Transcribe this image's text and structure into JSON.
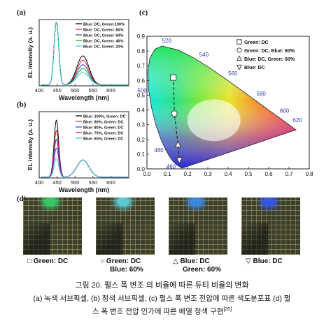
{
  "panel_labels": {
    "a": "(a)",
    "b": "(b)",
    "c": "(c)",
    "d": "(d)"
  },
  "chart_data": [
    {
      "id": "a",
      "type": "line",
      "xlabel": "Wavelength (nm)",
      "ylabel": "EL intensity (a. u.)",
      "xlim": [
        400,
        650
      ],
      "xticks": [
        400,
        450,
        500,
        550,
        600
      ],
      "legend_position": "top-right",
      "series": [
        {
          "name": "Blue: DC, Green:100%",
          "color": "#000000",
          "blue_peak": 1.0,
          "green_peak": 0.46
        },
        {
          "name": "Blue: DC, Green: 80%",
          "color": "#e0222a",
          "blue_peak": 1.0,
          "green_peak": 0.39
        },
        {
          "name": "Blue: DC, Green: 60%",
          "color": "#2a3fcf",
          "blue_peak": 1.0,
          "green_peak": 0.32
        },
        {
          "name": "Blue: DC, Green: 40%",
          "color": "#17a832",
          "blue_peak": 1.0,
          "green_peak": 0.26
        },
        {
          "name": "Blue: DC, Green: 20%",
          "color": "#35c7c7",
          "blue_peak": 1.0,
          "green_peak": 0.2
        }
      ]
    },
    {
      "id": "b",
      "type": "line",
      "xlabel": "Wavelength (nm)",
      "ylabel": "EL intensity (a. u.)",
      "xlim": [
        400,
        650
      ],
      "xticks": [
        400,
        450,
        500,
        550,
        600
      ],
      "legend_position": "top-right",
      "series": [
        {
          "name": "Blue: 100%, Green: DC",
          "color": "#000000",
          "blue_peak": 0.9,
          "green_peak": 0.27
        },
        {
          "name": "Blue: 90%, Green: DC",
          "color": "#e0222a",
          "blue_peak": 0.74,
          "green_peak": 0.27
        },
        {
          "name": "Blue: 80%, Green: DC",
          "color": "#2a3fcf",
          "blue_peak": 0.6,
          "green_peak": 0.27
        },
        {
          "name": "Blue: 70%, Green: DC",
          "color": "#a020a8",
          "blue_peak": 0.46,
          "green_peak": 0.27
        },
        {
          "name": "Blue: 60%, Green: DC",
          "color": "#35c7c7",
          "blue_peak": 0.3,
          "green_peak": 0.27
        }
      ]
    },
    {
      "id": "c",
      "type": "scatter",
      "xlim": [
        0.0,
        0.8
      ],
      "ylim": [
        0.0,
        0.9
      ],
      "xticks": [
        0.0,
        0.1,
        0.2,
        0.3,
        0.4,
        0.5,
        0.6,
        0.7,
        0.8
      ],
      "yticks": [
        0.0,
        0.1,
        0.2,
        0.3,
        0.4,
        0.5,
        0.6,
        0.7,
        0.8,
        0.9
      ],
      "legend_position": "top-right",
      "wavelength_labels": [
        "520",
        "540",
        "560",
        "580",
        "600",
        "620",
        "500",
        "480",
        "460"
      ],
      "locus": [
        {
          "nm": 460,
          "x": 0.144,
          "y": 0.03
        },
        {
          "nm": 470,
          "x": 0.124,
          "y": 0.058
        },
        {
          "nm": 475,
          "x": 0.11,
          "y": 0.087
        },
        {
          "nm": 480,
          "x": 0.091,
          "y": 0.133
        },
        {
          "nm": 485,
          "x": 0.069,
          "y": 0.201
        },
        {
          "nm": 490,
          "x": 0.045,
          "y": 0.295
        },
        {
          "nm": 495,
          "x": 0.023,
          "y": 0.413
        },
        {
          "nm": 500,
          "x": 0.008,
          "y": 0.538
        },
        {
          "nm": 505,
          "x": 0.004,
          "y": 0.655
        },
        {
          "nm": 510,
          "x": 0.014,
          "y": 0.75
        },
        {
          "nm": 515,
          "x": 0.039,
          "y": 0.812
        },
        {
          "nm": 520,
          "x": 0.074,
          "y": 0.834
        },
        {
          "nm": 530,
          "x": 0.155,
          "y": 0.806
        },
        {
          "nm": 540,
          "x": 0.23,
          "y": 0.754
        },
        {
          "nm": 550,
          "x": 0.302,
          "y": 0.692
        },
        {
          "nm": 560,
          "x": 0.373,
          "y": 0.625
        },
        {
          "nm": 570,
          "x": 0.444,
          "y": 0.555
        },
        {
          "nm": 580,
          "x": 0.512,
          "y": 0.487
        },
        {
          "nm": 590,
          "x": 0.575,
          "y": 0.424
        },
        {
          "nm": 600,
          "x": 0.627,
          "y": 0.373
        },
        {
          "nm": 610,
          "x": 0.666,
          "y": 0.334
        },
        {
          "nm": 620,
          "x": 0.691,
          "y": 0.308
        },
        {
          "nm": 640,
          "x": 0.719,
          "y": 0.281
        },
        {
          "nm": 700,
          "x": 0.735,
          "y": 0.265
        },
        {
          "nm": 400,
          "x": 0.173,
          "y": 0.005
        },
        {
          "nm": 450,
          "x": 0.157,
          "y": 0.018
        }
      ],
      "points": [
        {
          "name": "Green: DC",
          "marker": "square",
          "x": 0.13,
          "y": 0.62
        },
        {
          "name": "Green: DC, Blue: 60%",
          "marker": "circle",
          "x": 0.135,
          "y": 0.375
        },
        {
          "name": "Blue: DC, Green: 60%",
          "marker": "triangle-up",
          "x": 0.153,
          "y": 0.165
        },
        {
          "name": "Blue: DC",
          "marker": "triangle-down",
          "x": 0.16,
          "y": 0.06
        }
      ]
    }
  ],
  "panel_d": {
    "items": [
      {
        "symbol": "□",
        "line1": "Green: DC",
        "line2": "",
        "spot_color": "#37d36a"
      },
      {
        "symbol": "○",
        "line1": "Green: DC",
        "line2": "Blue: 60%",
        "spot_color": "#5fd6e6"
      },
      {
        "symbol": "△",
        "line1": "Blue: DC",
        "line2": "Green: 60%",
        "spot_color": "#3a8ef0"
      },
      {
        "symbol": "▽",
        "line1": "Blue: DC",
        "line2": "",
        "spot_color": "#3458f2"
      }
    ]
  },
  "caption": {
    "title": "그림 20. 펄스 폭 변조 의 비율에 따른 듀티 비율의 변화",
    "body_line1": "(a) 녹색 서브픽셀, (b) 청색 서브픽셀, (c) 펄스 폭 변조 전압에 따른 색도분포표 (d) 펄",
    "body_line2": "스 폭 변조 전압 인가에 따른 배열 청색 구현",
    "ref": "[20]"
  }
}
